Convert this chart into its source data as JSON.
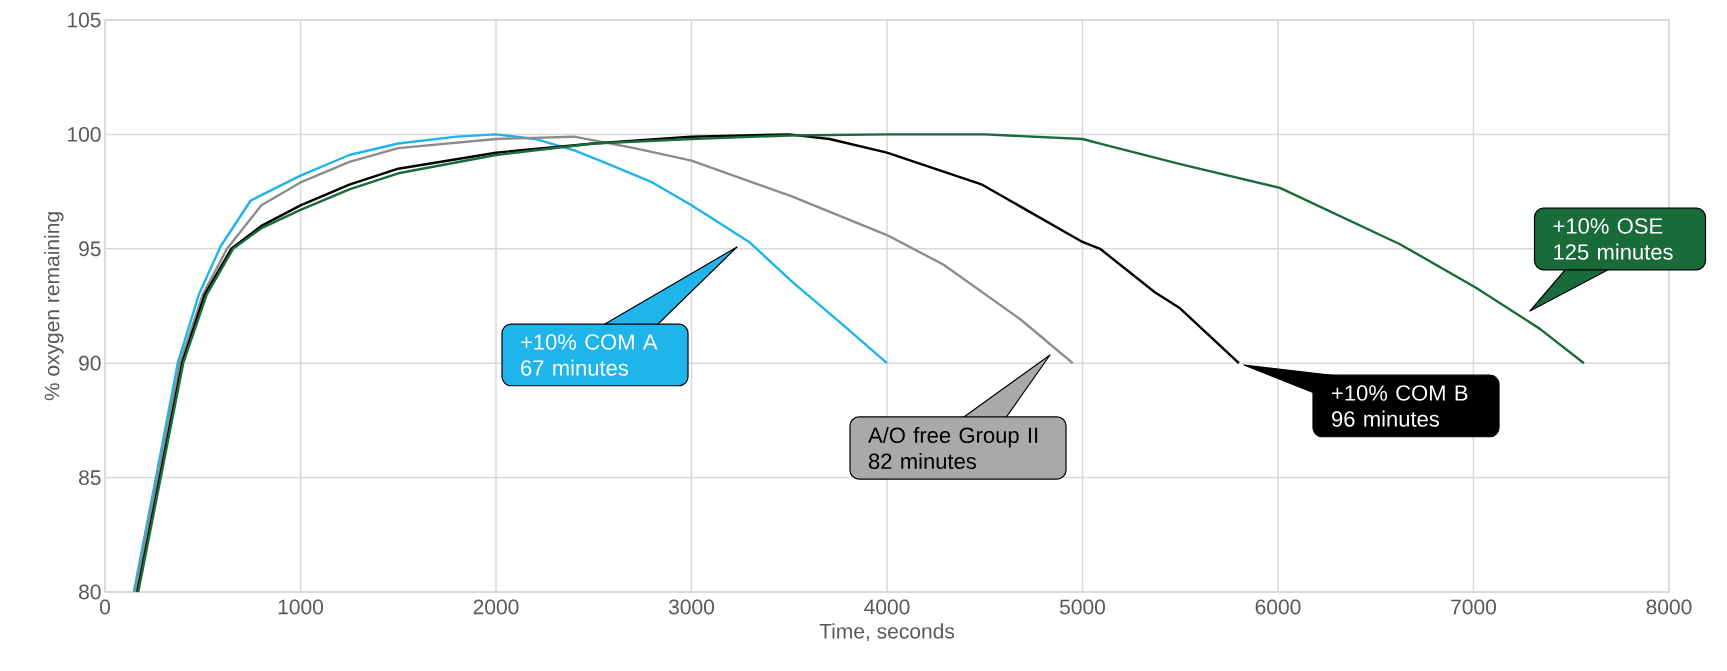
{
  "chart_data": {
    "type": "line",
    "xlabel": "Time, seconds",
    "ylabel": "% oxygen remaining",
    "xlim": [
      0,
      8000
    ],
    "xticks": [
      0,
      1000,
      2000,
      3000,
      4000,
      5000,
      6000,
      7000,
      8000
    ],
    "ylim": [
      80,
      105
    ],
    "yticks": [
      80,
      85,
      90,
      95,
      100,
      105
    ],
    "grid": true,
    "marker": "none",
    "line_style": "solid",
    "series": [
      {
        "color": "#1fb4ea",
        "x": [
          147,
          263,
          372,
          480,
          591,
          744,
          1000,
          1250,
          1500,
          1800,
          2000,
          2200,
          2400,
          2532,
          2800,
          3000,
          3295,
          3510,
          3785,
          4000
        ],
        "values": [
          80,
          85.1,
          90,
          93,
          95.1,
          97.1,
          98.2,
          99.1,
          99.6,
          99.9,
          100,
          99.8,
          99.3,
          98.85,
          97.9,
          96.9,
          95.3,
          93.6,
          91.6,
          90
        ]
      },
      {
        "color": "#8c8c8c",
        "x": [
          155,
          270,
          383,
          500,
          624,
          800,
          1000,
          1250,
          1500,
          2000,
          2400,
          2708,
          3000,
          3510,
          4000,
          4290,
          4685,
          4950
        ],
        "values": [
          80,
          85,
          90,
          93,
          95,
          96.9,
          97.9,
          98.8,
          99.4,
          99.8,
          99.9,
          99.4,
          98.85,
          97.3,
          95.6,
          94.3,
          91.9,
          90
        ]
      },
      {
        "color": "#000000",
        "x": [
          165,
          280,
          394,
          510,
          646,
          800,
          1000,
          1250,
          1500,
          2000,
          2500,
          3000,
          3500,
          3706,
          4000,
          4487,
          5000,
          5090,
          5370,
          5499,
          5800
        ],
        "values": [
          80,
          85,
          90,
          93,
          95,
          96,
          96.9,
          97.8,
          98.5,
          99.2,
          99.6,
          99.9,
          100,
          99.8,
          99.2,
          97.8,
          95.3,
          95,
          93.1,
          92.4,
          90
        ]
      },
      {
        "color": "#1a6b3a",
        "x": [
          170,
          285,
          400,
          520,
          655,
          800,
          1000,
          1250,
          1500,
          2000,
          2500,
          3000,
          3500,
          4000,
          4500,
          5000,
          5090,
          5500,
          6010,
          6624,
          7013,
          7340,
          7565
        ],
        "values": [
          80,
          85,
          90,
          93,
          95,
          95.9,
          96.7,
          97.6,
          98.3,
          99.1,
          99.6,
          99.8,
          99.95,
          100,
          100,
          99.8,
          99.6,
          98.7,
          97.66,
          95.2,
          93.3,
          91.5,
          90
        ]
      }
    ],
    "annotations": [
      "+10% COM A 67 minutes",
      "A/O free Group II 82 minutes",
      "+10% COM B 96 minutes",
      "+10% OSE 125 minutes"
    ]
  }
}
